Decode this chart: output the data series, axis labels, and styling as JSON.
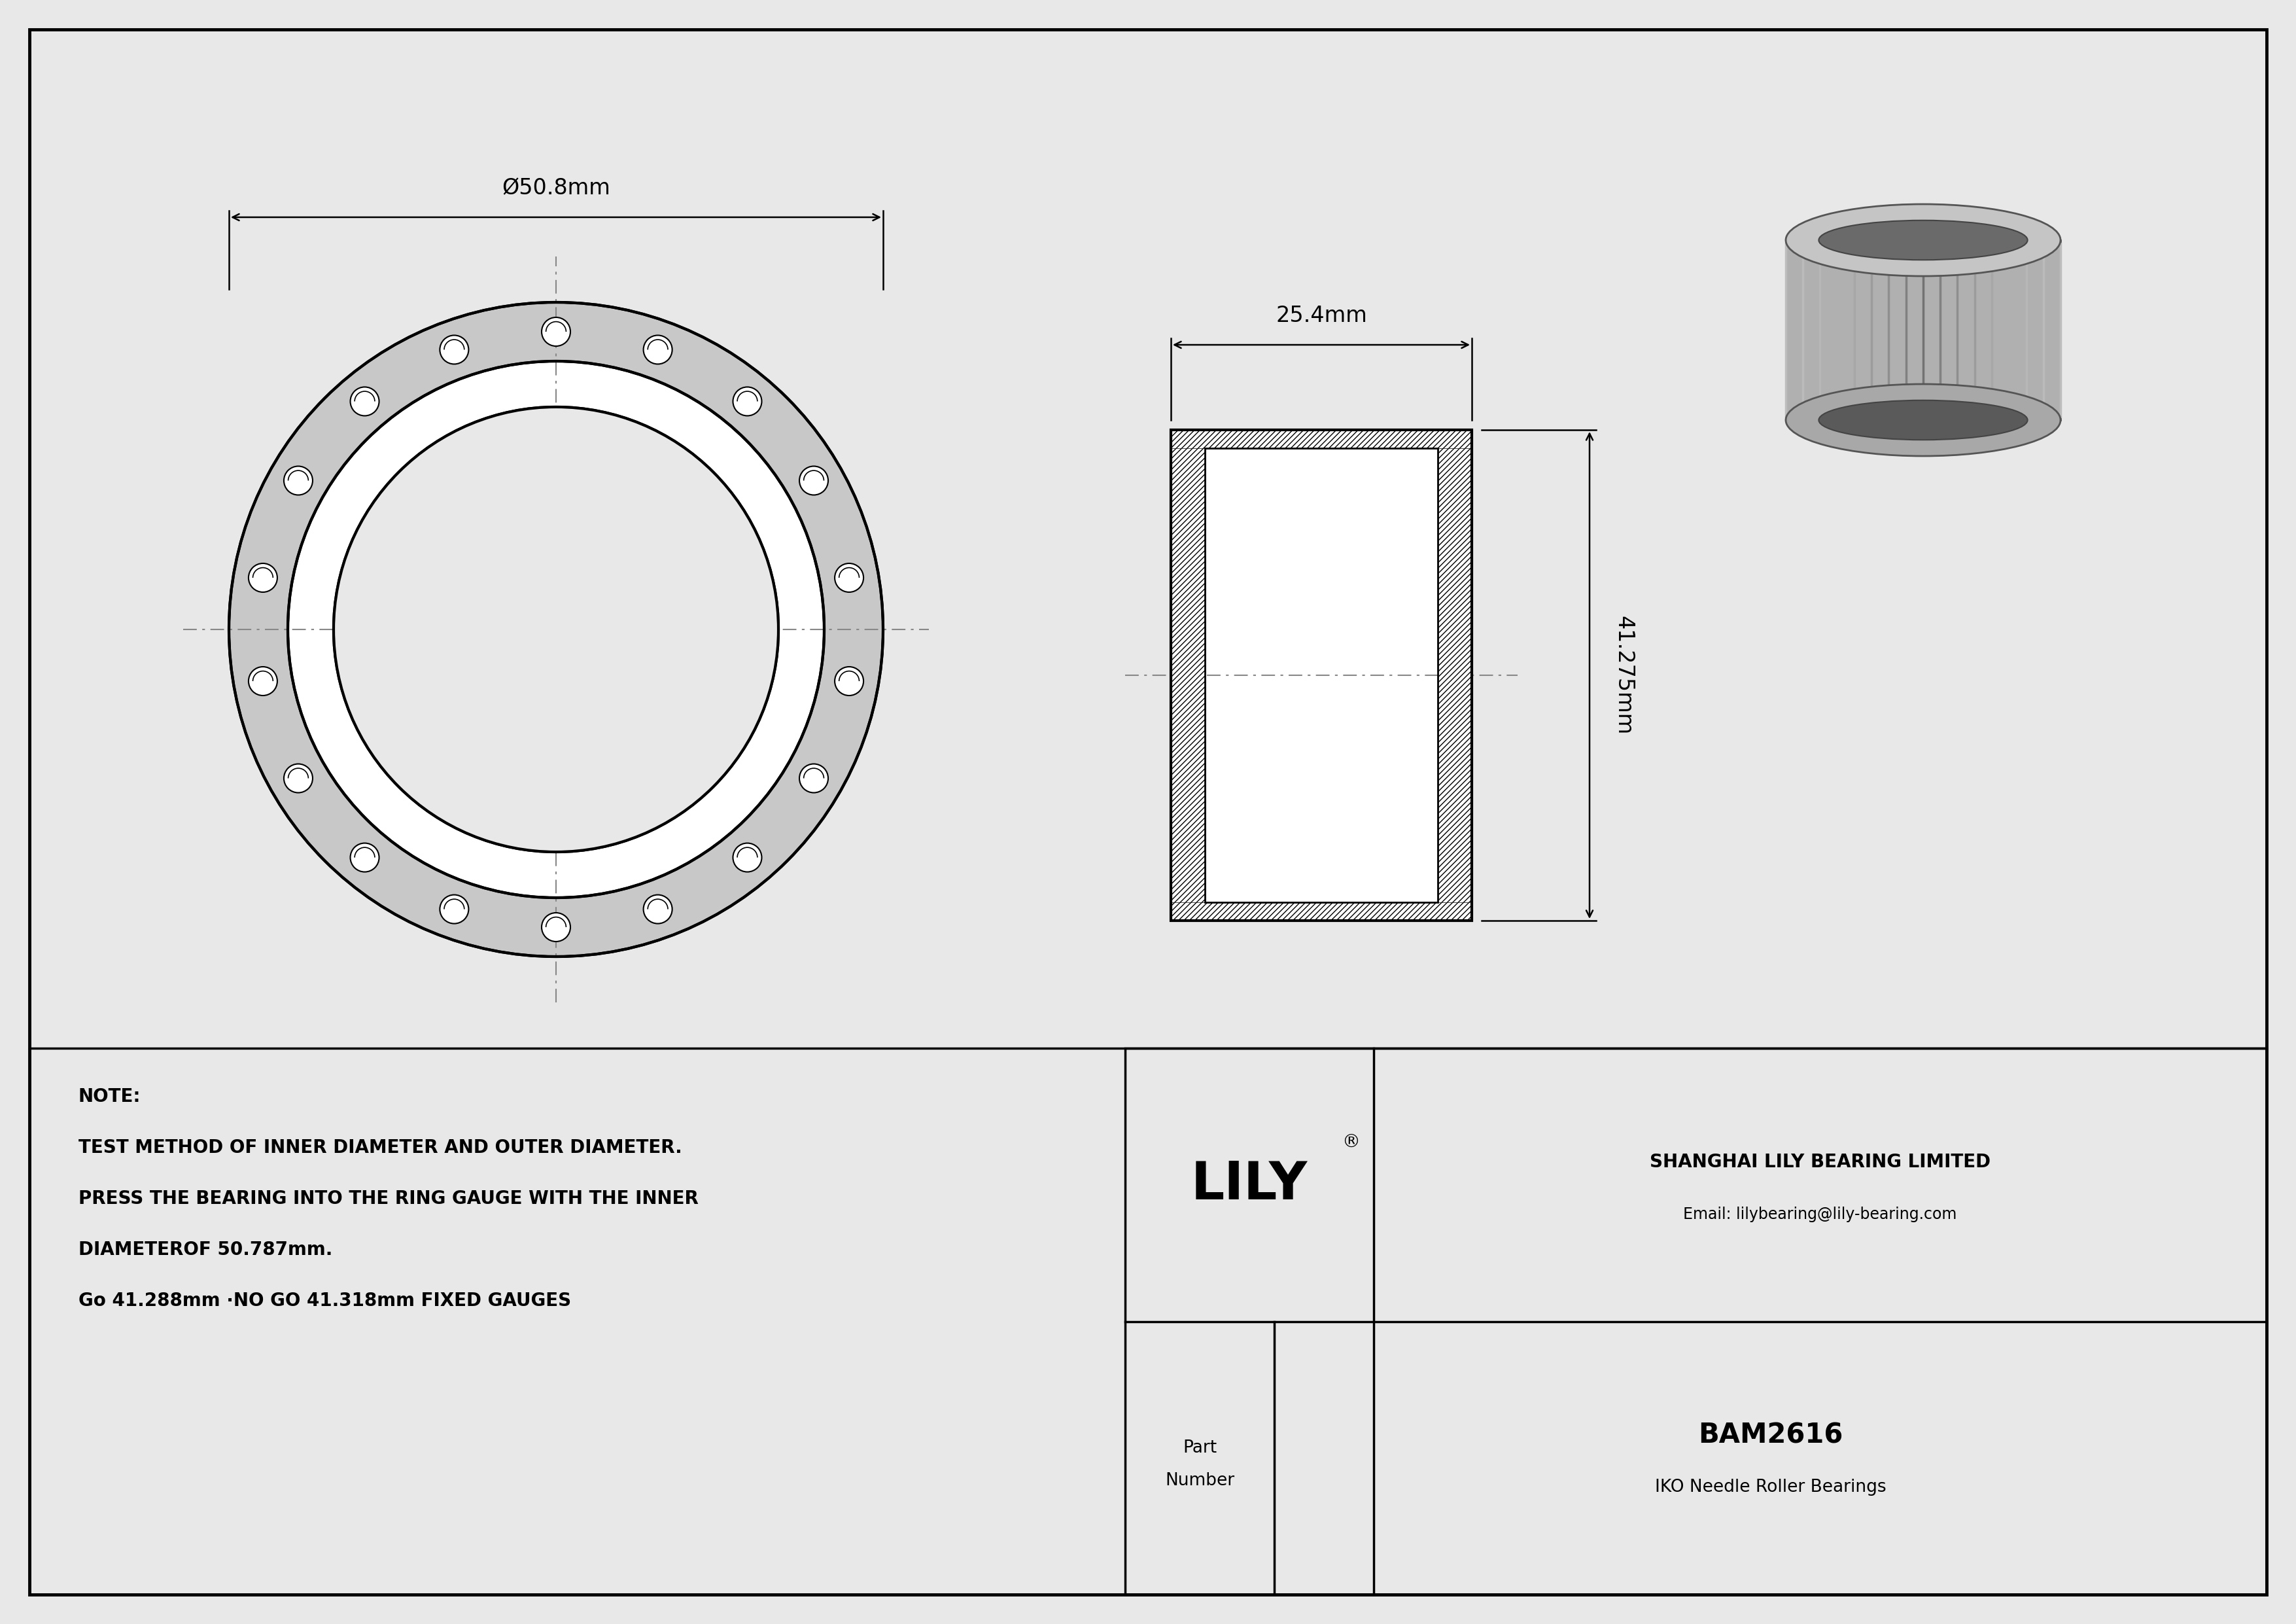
{
  "bg_color": "#e8e8e8",
  "white": "#ffffff",
  "line_color": "#000000",
  "center_line_color": "#888888",
  "gray_fill": "#c8c8c8",
  "dark_gray": "#a0a0a0",
  "part_number": "BAM2616",
  "bearing_type": "IKO Needle Roller Bearings",
  "company": "SHANGHAI LILY BEARING LIMITED",
  "email": "Email: lilybearing@lily-bearing.com",
  "logo": "LILY",
  "outer_diameter_label": "Ø50.8mm",
  "width_label": "25.4mm",
  "height_label": "41.275mm",
  "note_line1": "NOTE:",
  "note_line2": "TEST METHOD OF INNER DIAMETER AND OUTER DIAMETER.",
  "note_line3": "PRESS THE BEARING INTO THE RING GAUGE WITH THE INNER",
  "note_line4": "DIAMETEROF 50.787mm.",
  "note_line5": "Go 41.288mm ·NO GO 41.318mm FIXED GAUGES"
}
